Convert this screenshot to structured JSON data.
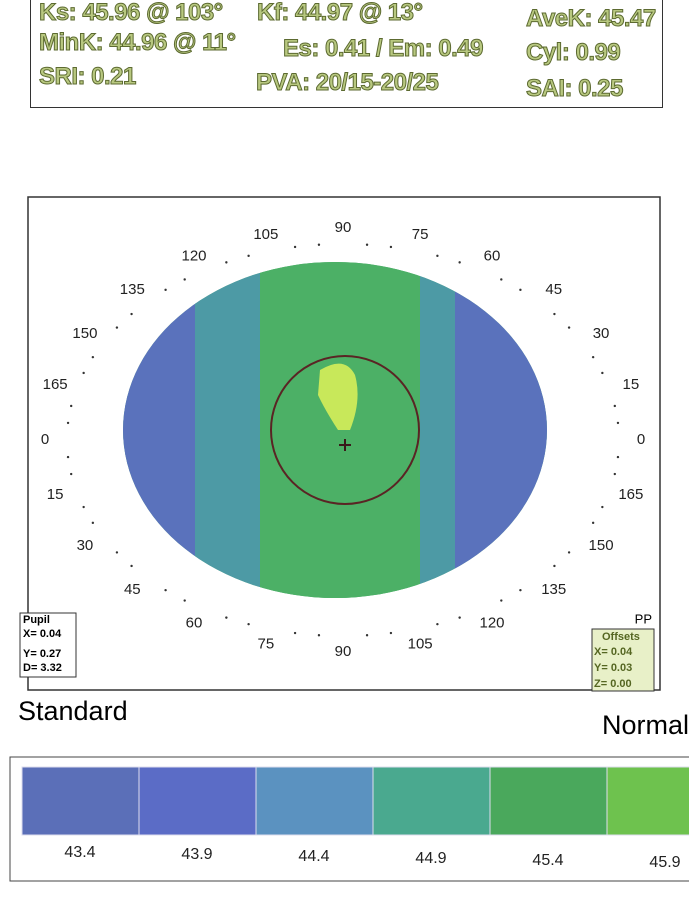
{
  "header": {
    "rows": [
      [
        "Ks: 45.96 @ 103°",
        "Kf: 44.97 @ 13°",
        "AveK: 45.47"
      ],
      [
        "MinK: 44.96 @ 11°",
        "Es: 0.41 / Em: 0.49",
        "Cyl: 0.99"
      ],
      [
        "SRI: 0.21",
        "PVA: 20/15-20/25",
        "SAI: 0.25"
      ]
    ]
  },
  "map": {
    "angle_labels": [
      "90",
      "105",
      "120",
      "135",
      "150",
      "165",
      "0",
      "15",
      "30",
      "45",
      "60",
      "75",
      "90",
      "105",
      "120",
      "135",
      "150",
      "165",
      "0",
      "15",
      "30",
      "45",
      "60",
      "75"
    ],
    "pupil": {
      "title": "Pupil",
      "lines": [
        "X= 0.04",
        "Y= 0.27",
        "D= 3.32"
      ]
    },
    "offsets": {
      "mode": "PP",
      "title": "Offsets",
      "lines": [
        "X= 0.04",
        "Y= 0.03",
        "Z= 0.00"
      ]
    }
  },
  "captions": {
    "left": "Standard",
    "right": "Normal"
  },
  "scale": {
    "colors": [
      "#5b6fb8",
      "#5b6cc6",
      "#5b92c0",
      "#4aa98f",
      "#4aa85c",
      "#6ec24e"
    ],
    "labels": [
      "43.4",
      "43.9",
      "44.4",
      "44.9",
      "45.4",
      "45.9"
    ]
  }
}
